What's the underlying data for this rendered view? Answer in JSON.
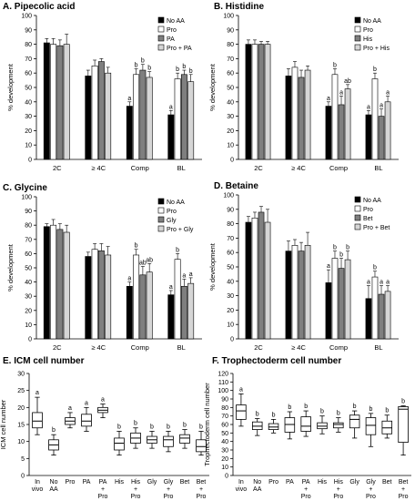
{
  "colors": {
    "black": "#000000",
    "white": "#ffffff",
    "dark_gray": "#7f7f7f",
    "light_gray": "#d6d6d6"
  },
  "chart_data": [
    {
      "type": "bar",
      "panel": "A",
      "title": "A. Pipecolic acid",
      "ylabel": "% development",
      "ylim": [
        0,
        100
      ],
      "yticks": [
        0,
        10,
        20,
        30,
        40,
        50,
        60,
        70,
        80,
        90,
        100
      ],
      "legend_placement": "top-right",
      "categories": [
        "2C",
        "≥ 4C",
        "Comp",
        "BL"
      ],
      "series": [
        {
          "name": "No AA",
          "fill": "black",
          "values": [
            81,
            58,
            37,
            31
          ],
          "errors": [
            3,
            4,
            3,
            3
          ],
          "letters": [
            "",
            "",
            "a",
            "a"
          ]
        },
        {
          "name": "Pro",
          "fill": "white",
          "values": [
            80,
            65,
            59,
            56
          ],
          "errors": [
            4,
            4,
            4,
            4
          ],
          "letters": [
            "",
            "",
            "b",
            "b"
          ]
        },
        {
          "name": "PA",
          "fill": "dark_gray",
          "values": [
            79,
            68,
            62,
            59
          ],
          "errors": [
            4,
            2,
            4,
            3
          ],
          "letters": [
            "",
            "",
            "b",
            "b"
          ]
        },
        {
          "name": "Pro + PA",
          "fill": "light_gray",
          "values": [
            80,
            60,
            57,
            54
          ],
          "errors": [
            7,
            4,
            4,
            5
          ],
          "letters": [
            "",
            "",
            "b",
            "b"
          ]
        }
      ]
    },
    {
      "type": "bar",
      "panel": "B",
      "title": "B. Histidine",
      "ylabel": "% development",
      "ylim": [
        0,
        100
      ],
      "yticks": [
        0,
        10,
        20,
        30,
        40,
        50,
        60,
        70,
        80,
        90,
        100
      ],
      "legend_placement": "top-right",
      "categories": [
        "2C",
        "≥ 4C",
        "Comp",
        "BL"
      ],
      "series": [
        {
          "name": "No AA",
          "fill": "black",
          "values": [
            80,
            58,
            37,
            31
          ],
          "errors": [
            3,
            5,
            3,
            3
          ],
          "letters": [
            "",
            "",
            "a",
            "a"
          ]
        },
        {
          "name": "Pro",
          "fill": "white",
          "values": [
            80,
            64,
            59,
            56
          ],
          "errors": [
            3,
            4,
            4,
            4
          ],
          "letters": [
            "",
            "",
            "b",
            "b"
          ]
        },
        {
          "name": "His",
          "fill": "dark_gray",
          "values": [
            80,
            57,
            38,
            30
          ],
          "errors": [
            2,
            5,
            6,
            5
          ],
          "letters": [
            "",
            "",
            "a",
            "a"
          ]
        },
        {
          "name": "Pro + His",
          "fill": "light_gray",
          "values": [
            80,
            62,
            49,
            40
          ],
          "errors": [
            2,
            3,
            3,
            4
          ],
          "letters": [
            "",
            "",
            "ab",
            "a"
          ]
        }
      ]
    },
    {
      "type": "bar",
      "panel": "C",
      "title": "C. Glycine",
      "ylabel": "% development",
      "ylim": [
        0,
        100
      ],
      "yticks": [
        0,
        10,
        20,
        30,
        40,
        50,
        60,
        70,
        80,
        90,
        100
      ],
      "legend_placement": "top-right",
      "categories": [
        "2C",
        "≥ 4C",
        "Comp",
        "BL"
      ],
      "series": [
        {
          "name": "No AA",
          "fill": "black",
          "values": [
            79,
            58,
            37,
            31
          ],
          "errors": [
            2,
            3,
            3,
            3
          ],
          "letters": [
            "",
            "",
            "a",
            "a"
          ]
        },
        {
          "name": "Pro",
          "fill": "white",
          "values": [
            80,
            63,
            59,
            56
          ],
          "errors": [
            4,
            4,
            4,
            4
          ],
          "letters": [
            "",
            "",
            "b",
            "b"
          ]
        },
        {
          "name": "Gly",
          "fill": "dark_gray",
          "values": [
            77,
            62,
            45,
            37
          ],
          "errors": [
            4,
            5,
            6,
            5
          ],
          "letters": [
            "",
            "",
            "ab",
            "a"
          ]
        },
        {
          "name": "Pro + Gly",
          "fill": "light_gray",
          "values": [
            75,
            59,
            47,
            39
          ],
          "errors": [
            5,
            6,
            6,
            4
          ],
          "letters": [
            "",
            "",
            "ab",
            "a"
          ]
        }
      ]
    },
    {
      "type": "bar",
      "panel": "D",
      "title": "D. Betaine",
      "ylabel": "% development",
      "ylim": [
        0,
        100
      ],
      "yticks": [
        0,
        10,
        20,
        30,
        40,
        50,
        60,
        70,
        80,
        90,
        100
      ],
      "legend_placement": "top-right",
      "categories": [
        "2C",
        "≥ 4C",
        "Comp",
        "BL"
      ],
      "series": [
        {
          "name": "No AA",
          "fill": "black",
          "values": [
            81,
            61,
            39,
            28
          ],
          "errors": [
            4,
            7,
            9,
            9
          ],
          "letters": [
            "",
            "",
            "a",
            "a"
          ]
        },
        {
          "name": "Pro",
          "fill": "white",
          "values": [
            84,
            65,
            56,
            43
          ],
          "errors": [
            4,
            4,
            5,
            4
          ],
          "letters": [
            "",
            "",
            "b",
            "b"
          ]
        },
        {
          "name": "Bet",
          "fill": "dark_gray",
          "values": [
            88,
            61,
            49,
            31
          ],
          "errors": [
            4,
            6,
            7,
            6
          ],
          "letters": [
            "",
            "",
            "b",
            "a"
          ]
        },
        {
          "name": "Pro + Bet",
          "fill": "light_gray",
          "values": [
            81,
            65,
            55,
            33
          ],
          "errors": [
            9,
            9,
            6,
            4
          ],
          "letters": [
            "",
            "",
            "b",
            "a"
          ]
        }
      ]
    },
    {
      "type": "box",
      "panel": "E",
      "title": "E. ICM cell number",
      "ylabel": "ICM cell number",
      "ylim": [
        0,
        30
      ],
      "yticks": [
        0,
        5,
        10,
        15,
        20,
        25,
        30
      ],
      "categories": [
        "In vivo",
        "No AA",
        "Pro",
        "PA",
        "PA + Pro",
        "His",
        "His + Pro",
        "Gly",
        "Gly + Pro",
        "Bet",
        "Bet + Pro"
      ],
      "boxes": [
        {
          "min": 12,
          "q1": 14,
          "median": 16,
          "q3": 18.5,
          "max": 23,
          "letter": "a"
        },
        {
          "min": 6,
          "q1": 7.5,
          "median": 9,
          "q3": 10.5,
          "max": 12,
          "letter": "b"
        },
        {
          "min": 14,
          "q1": 15,
          "median": 16,
          "q3": 17,
          "max": 18.5,
          "letter": "a"
        },
        {
          "min": 13,
          "q1": 14.5,
          "median": 16,
          "q3": 18,
          "max": 20,
          "letter": "a"
        },
        {
          "min": 17,
          "q1": 18.5,
          "median": 19.2,
          "q3": 20,
          "max": 21,
          "letter": "a"
        },
        {
          "min": 6,
          "q1": 7.5,
          "median": 9.5,
          "q3": 11,
          "max": 13,
          "letter": "b"
        },
        {
          "min": 8,
          "q1": 9.5,
          "median": 11,
          "q3": 12.5,
          "max": 14,
          "letter": "b"
        },
        {
          "min": 8,
          "q1": 9.5,
          "median": 10.5,
          "q3": 11.5,
          "max": 13,
          "letter": "b"
        },
        {
          "min": 7,
          "q1": 8.5,
          "median": 10.5,
          "q3": 11.5,
          "max": 13,
          "letter": "b"
        },
        {
          "min": 8,
          "q1": 9.5,
          "median": 11,
          "q3": 12,
          "max": 13.5,
          "letter": "b"
        },
        {
          "min": 6,
          "q1": 7,
          "median": 8.5,
          "q3": 10.5,
          "max": 13,
          "letter": "b"
        }
      ]
    },
    {
      "type": "box",
      "panel": "F",
      "title": "F. Trophectoderm cell number",
      "ylabel": "Trophectoderm cell number",
      "ylim": [
        0,
        120
      ],
      "yticks": [
        0,
        10,
        20,
        30,
        40,
        50,
        60,
        70,
        80,
        90,
        100,
        110,
        120
      ],
      "categories": [
        "In vivo",
        "No AA",
        "Pro",
        "PA",
        "PA + Pro",
        "His",
        "His + Pro",
        "Gly",
        "Gly + Pro",
        "Bet",
        "Bet + Pro"
      ],
      "boxes": [
        {
          "min": 58,
          "q1": 66,
          "median": 76,
          "q3": 83,
          "max": 96,
          "letter": "a"
        },
        {
          "min": 47,
          "q1": 54,
          "median": 58,
          "q3": 63,
          "max": 67,
          "letter": "b"
        },
        {
          "min": 50,
          "q1": 54,
          "median": 57,
          "q3": 61,
          "max": 66,
          "letter": "b"
        },
        {
          "min": 43,
          "q1": 51,
          "median": 60,
          "q3": 68,
          "max": 75,
          "letter": "b"
        },
        {
          "min": 46,
          "q1": 52,
          "median": 58,
          "q3": 69,
          "max": 76,
          "letter": "b"
        },
        {
          "min": 49,
          "q1": 55,
          "median": 58,
          "q3": 62,
          "max": 70,
          "letter": "b"
        },
        {
          "min": 51,
          "q1": 56,
          "median": 60,
          "q3": 62,
          "max": 68,
          "letter": "b"
        },
        {
          "min": 44,
          "q1": 56,
          "median": 66,
          "q3": 71,
          "max": 76,
          "letter": "b"
        },
        {
          "min": 34,
          "q1": 48,
          "median": 59,
          "q3": 68,
          "max": 73,
          "letter": "b"
        },
        {
          "min": 44,
          "q1": 49,
          "median": 56,
          "q3": 64,
          "max": 71,
          "letter": "b"
        },
        {
          "min": 24,
          "q1": 39,
          "median": 78,
          "q3": 81,
          "max": 82,
          "letter": "b"
        }
      ]
    }
  ]
}
